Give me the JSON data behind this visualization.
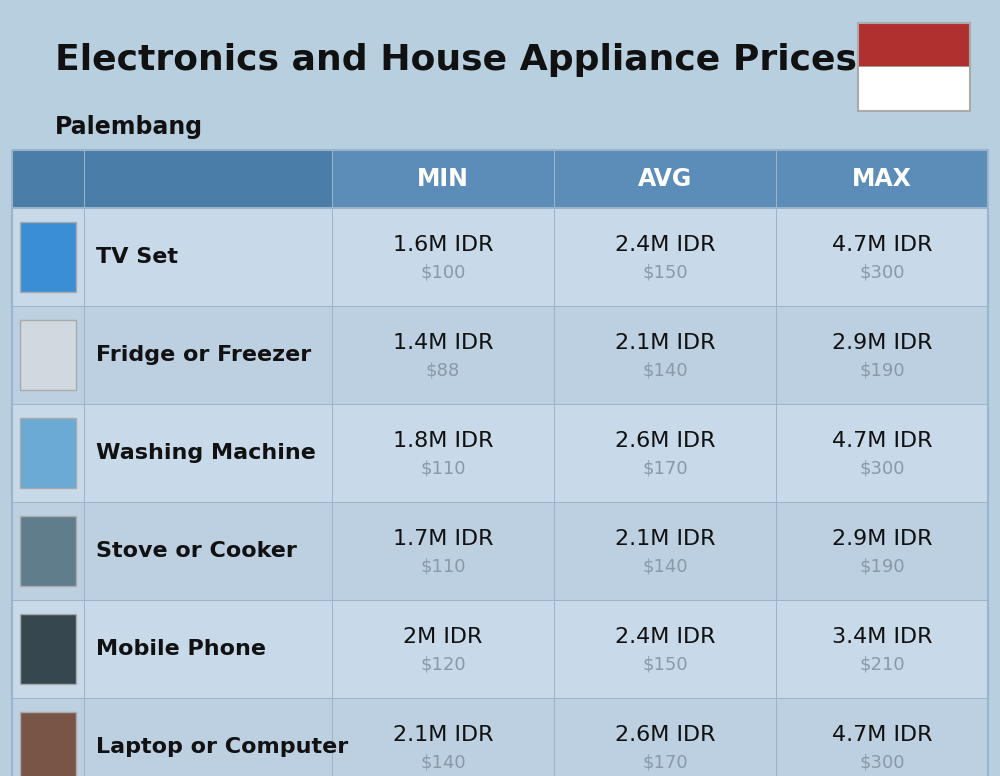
{
  "title": "Electronics and House Appliance Prices",
  "subtitle": "Palembang",
  "bg_color": "#b8cfe0",
  "header_color": "#5b8db8",
  "header_left_color": "#4a7da8",
  "row_colors": [
    "#c8daea",
    "#bdd0e2"
  ],
  "cell_border_color": "#9ab5cb",
  "col_headers": [
    "MIN",
    "AVG",
    "MAX"
  ],
  "items": [
    {
      "name": "TV Set",
      "min_idr": "1.6M IDR",
      "min_usd": "$100",
      "avg_idr": "2.4M IDR",
      "avg_usd": "$150",
      "max_idr": "4.7M IDR",
      "max_usd": "$300"
    },
    {
      "name": "Fridge or Freezer",
      "min_idr": "1.4M IDR",
      "min_usd": "$88",
      "avg_idr": "2.1M IDR",
      "avg_usd": "$140",
      "max_idr": "2.9M IDR",
      "max_usd": "$190"
    },
    {
      "name": "Washing Machine",
      "min_idr": "1.8M IDR",
      "min_usd": "$110",
      "avg_idr": "2.6M IDR",
      "avg_usd": "$170",
      "max_idr": "4.7M IDR",
      "max_usd": "$300"
    },
    {
      "name": "Stove or Cooker",
      "min_idr": "1.7M IDR",
      "min_usd": "$110",
      "avg_idr": "2.1M IDR",
      "avg_usd": "$140",
      "max_idr": "2.9M IDR",
      "max_usd": "$190"
    },
    {
      "name": "Mobile Phone",
      "min_idr": "2M IDR",
      "min_usd": "$120",
      "avg_idr": "2.4M IDR",
      "avg_usd": "$150",
      "max_idr": "3.4M IDR",
      "max_usd": "$210"
    },
    {
      "name": "Laptop or Computer",
      "min_idr": "2.1M IDR",
      "min_usd": "$140",
      "avg_idr": "2.6M IDR",
      "avg_usd": "$170",
      "max_idr": "4.7M IDR",
      "max_usd": "$300"
    }
  ],
  "flag_red": "#b03030",
  "flag_white": "#ffffff",
  "title_fontsize": 26,
  "subtitle_fontsize": 17,
  "header_fontsize": 17,
  "idr_fontsize": 16,
  "usd_fontsize": 13,
  "name_fontsize": 16,
  "usd_color": "#8899aa",
  "icon_colors": [
    "#3a8fd4",
    "#d0d8e0",
    "#6aaad4",
    "#607d8b",
    "#37474f",
    "#795548"
  ]
}
